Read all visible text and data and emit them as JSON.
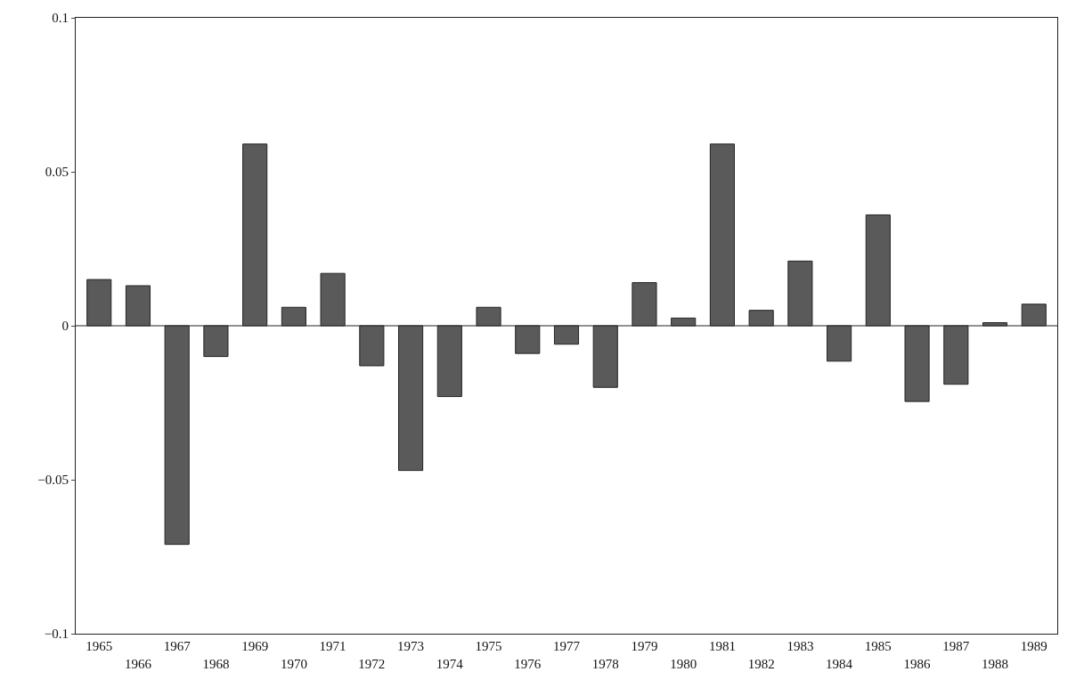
{
  "chart_data": {
    "type": "bar",
    "categories": [
      "1965",
      "1966",
      "1967",
      "1968",
      "1969",
      "1970",
      "1971",
      "1972",
      "1973",
      "1974",
      "1975",
      "1976",
      "1977",
      "1978",
      "1979",
      "1980",
      "1981",
      "1982",
      "1983",
      "1984",
      "1985",
      "1986",
      "1987",
      "1988",
      "1989"
    ],
    "values": [
      0.015,
      0.013,
      -0.071,
      -0.01,
      0.059,
      0.006,
      0.017,
      -0.013,
      -0.047,
      -0.023,
      0.006,
      -0.009,
      -0.006,
      -0.02,
      0.014,
      0.0025,
      0.059,
      0.005,
      0.021,
      -0.0115,
      0.036,
      -0.0246,
      -0.019,
      0.001,
      0.007
    ],
    "color": "#5a5a5a",
    "ylim": [
      -0.1,
      0.1
    ],
    "yticks": [
      {
        "value": -0.1,
        "label": "−0.1"
      },
      {
        "value": -0.05,
        "label": "−0.05"
      },
      0,
      0.05,
      0.1
    ],
    "ref_lines": [
      {
        "axis": "y",
        "value": 0,
        "color": "#222222"
      }
    ]
  }
}
